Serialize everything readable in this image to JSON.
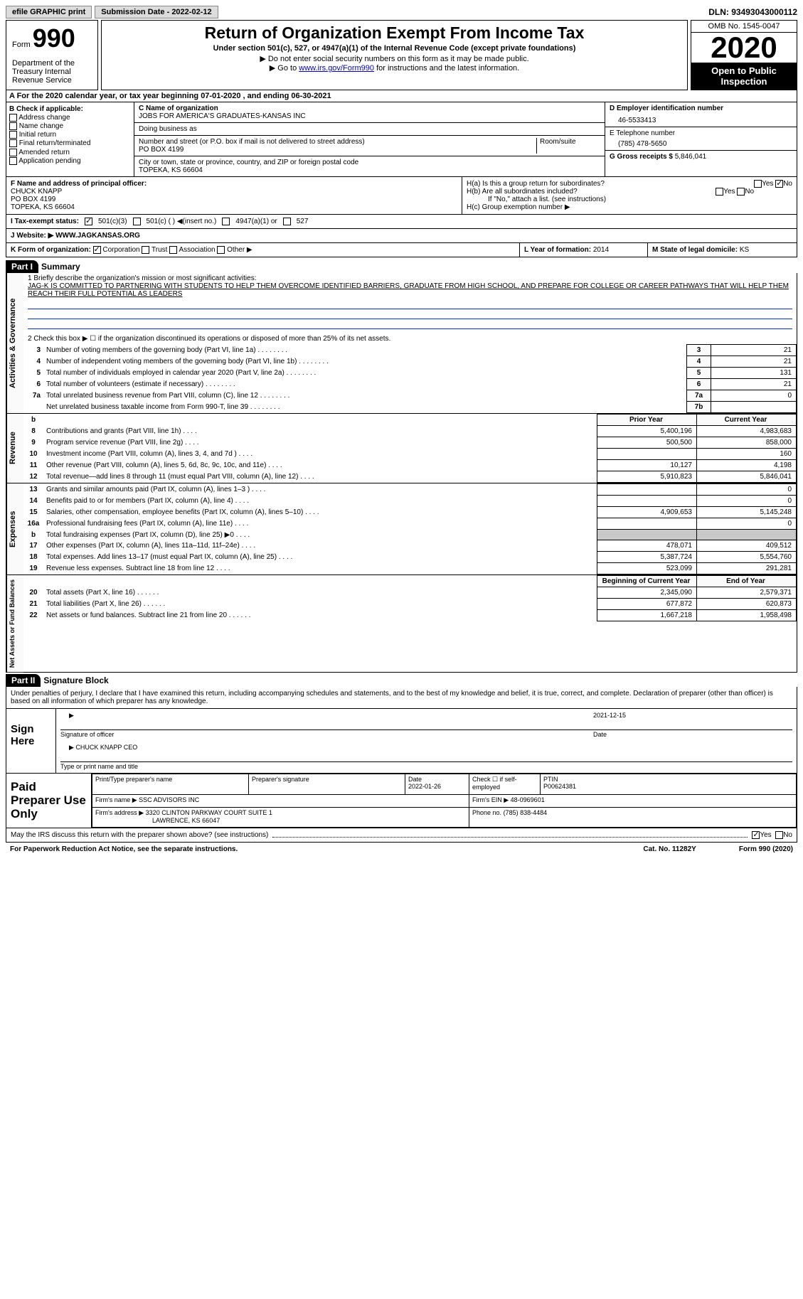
{
  "top": {
    "efile": "efile GRAPHIC print",
    "submission_label": "Submission Date - 2022-02-12",
    "dln": "DLN: 93493043000112"
  },
  "header": {
    "form_word": "Form",
    "form_num": "990",
    "dept": "Department of the Treasury Internal Revenue Service",
    "title": "Return of Organization Exempt From Income Tax",
    "subtitle": "Under section 501(c), 527, or 4947(a)(1) of the Internal Revenue Code (except private foundations)",
    "instr1": "▶ Do not enter social security numbers on this form as it may be made public.",
    "instr2_pre": "▶ Go to ",
    "instr2_link": "www.irs.gov/Form990",
    "instr2_post": " for instructions and the latest information.",
    "omb": "OMB No. 1545-0047",
    "year": "2020",
    "open": "Open to Public Inspection"
  },
  "cal_year": "A For the 2020 calendar year, or tax year beginning 07-01-2020   , and ending 06-30-2021",
  "checks": {
    "header": "B Check if applicable:",
    "c1": "Address change",
    "c2": "Name change",
    "c3": "Initial return",
    "c4": "Final return/terminated",
    "c5": "Amended return",
    "c6": "Application pending"
  },
  "org": {
    "name_label": "C Name of organization",
    "name": "JOBS FOR AMERICA'S GRADUATES-KANSAS INC",
    "dba_label": "Doing business as",
    "dba": "",
    "street_label": "Number and street (or P.O. box if mail is not delivered to street address)",
    "room_label": "Room/suite",
    "street": "PO BOX 4199",
    "city_label": "City or town, state or province, country, and ZIP or foreign postal code",
    "city": "TOPEKA, KS  66604"
  },
  "right": {
    "ein_label": "D Employer identification number",
    "ein": "46-5533413",
    "phone_label": "E Telephone number",
    "phone": "(785) 478-5650",
    "gross_label": "G Gross receipts $",
    "gross": "5,846,041"
  },
  "officer": {
    "label": "F  Name and address of principal officer:",
    "name": "CHUCK KNAPP",
    "street": "PO BOX 4199",
    "city": "TOPEKA, KS  66604"
  },
  "h": {
    "ha_label": "H(a)  Is this a group return for subordinates?",
    "ha_yes": "Yes",
    "ha_no": "No",
    "hb_label": "H(b)  Are all subordinates included?",
    "hb_yes": "Yes",
    "hb_no": "No",
    "hb_note": "If \"No,\" attach a list. (see instructions)",
    "hc_label": "H(c)  Group exemption number ▶"
  },
  "tax_status": {
    "label": "I   Tax-exempt status:",
    "o1": "501(c)(3)",
    "o2": "501(c) (  ) ◀(insert no.)",
    "o3": "4947(a)(1) or",
    "o4": "527"
  },
  "website": {
    "label": "J  Website: ▶  ",
    "val": "WWW.JAGKANSAS.ORG"
  },
  "org_form": {
    "label": "K Form of organization:",
    "o1": "Corporation",
    "o2": "Trust",
    "o3": "Association",
    "o4": "Other ▶",
    "year_label": "L Year of formation: ",
    "year": "2014",
    "state_label": "M State of legal domicile: ",
    "state": "KS"
  },
  "part1": {
    "header": "Part I",
    "title": "Summary"
  },
  "summary": {
    "l1_label": "1   Briefly describe the organization's mission or most significant activities:",
    "l1_text": "JAG-K IS COMMITTED TO PARTNERING WITH STUDENTS TO HELP THEM OVERCOME IDENTIFIED BARRIERS, GRADUATE FROM HIGH SCHOOL, AND PREPARE FOR COLLEGE OR CAREER PATHWAYS THAT WILL HELP THEM REACH THEIR FULL POTENTIAL AS LEADERS",
    "l2": "2   Check this box ▶ ☐  if the organization discontinued its operations or disposed of more than 25% of its net assets.",
    "lines": [
      {
        "n": "3",
        "label": "Number of voting members of the governing body (Part VI, line 1a)",
        "box": "3",
        "val": "21"
      },
      {
        "n": "4",
        "label": "Number of independent voting members of the governing body (Part VI, line 1b)",
        "box": "4",
        "val": "21"
      },
      {
        "n": "5",
        "label": "Total number of individuals employed in calendar year 2020 (Part V, line 2a)",
        "box": "5",
        "val": "131"
      },
      {
        "n": "6",
        "label": "Total number of volunteers (estimate if necessary)",
        "box": "6",
        "val": "21"
      },
      {
        "n": "7a",
        "label": "Total unrelated business revenue from Part VIII, column (C), line 12",
        "box": "7a",
        "val": "0"
      },
      {
        "n": "",
        "label": "Net unrelated business taxable income from Form 990-T, line 39",
        "box": "7b",
        "val": ""
      }
    ]
  },
  "revenue": {
    "side": "Revenue",
    "hdr": {
      "b": "b",
      "py": "Prior Year",
      "cy": "Current Year"
    },
    "rows": [
      {
        "n": "8",
        "label": "Contributions and grants (Part VIII, line 1h)",
        "py": "5,400,196",
        "cy": "4,983,683"
      },
      {
        "n": "9",
        "label": "Program service revenue (Part VIII, line 2g)",
        "py": "500,500",
        "cy": "858,000"
      },
      {
        "n": "10",
        "label": "Investment income (Part VIII, column (A), lines 3, 4, and 7d )",
        "py": "",
        "cy": "160"
      },
      {
        "n": "11",
        "label": "Other revenue (Part VIII, column (A), lines 5, 6d, 8c, 9c, 10c, and 11e)",
        "py": "10,127",
        "cy": "4,198"
      },
      {
        "n": "12",
        "label": "Total revenue—add lines 8 through 11 (must equal Part VIII, column (A), line 12)",
        "py": "5,910,823",
        "cy": "5,846,041"
      }
    ]
  },
  "expenses": {
    "side": "Expenses",
    "rows": [
      {
        "n": "13",
        "label": "Grants and similar amounts paid (Part IX, column (A), lines 1–3 )",
        "py": "",
        "cy": "0"
      },
      {
        "n": "14",
        "label": "Benefits paid to or for members (Part IX, column (A), line 4)",
        "py": "",
        "cy": "0"
      },
      {
        "n": "15",
        "label": "Salaries, other compensation, employee benefits (Part IX, column (A), lines 5–10)",
        "py": "4,909,653",
        "cy": "5,145,248"
      },
      {
        "n": "16a",
        "label": "Professional fundraising fees (Part IX, column (A), line 11e)",
        "py": "",
        "cy": "0"
      },
      {
        "n": "b",
        "label": "Total fundraising expenses (Part IX, column (D), line 25) ▶0",
        "py": "SHADE",
        "cy": "SHADE"
      },
      {
        "n": "17",
        "label": "Other expenses (Part IX, column (A), lines 11a–11d, 11f–24e)",
        "py": "478,071",
        "cy": "409,512"
      },
      {
        "n": "18",
        "label": "Total expenses. Add lines 13–17 (must equal Part IX, column (A), line 25)",
        "py": "5,387,724",
        "cy": "5,554,760"
      },
      {
        "n": "19",
        "label": "Revenue less expenses. Subtract line 18 from line 12",
        "py": "523,099",
        "cy": "291,281"
      }
    ]
  },
  "net": {
    "side": "Net Assets or Fund Balances",
    "hdr": {
      "py": "Beginning of Current Year",
      "cy": "End of Year"
    },
    "rows": [
      {
        "n": "20",
        "label": "Total assets (Part X, line 16)",
        "py": "2,345,090",
        "cy": "2,579,371"
      },
      {
        "n": "21",
        "label": "Total liabilities (Part X, line 26)",
        "py": "677,872",
        "cy": "620,873"
      },
      {
        "n": "22",
        "label": "Net assets or fund balances. Subtract line 21 from line 20",
        "py": "1,667,218",
        "cy": "1,958,498"
      }
    ]
  },
  "part2": {
    "header": "Part II",
    "title": "Signature Block"
  },
  "perjury": "Under penalties of perjury, I declare that I have examined this return, including accompanying schedules and statements, and to the best of my knowledge and belief, it is true, correct, and complete. Declaration of preparer (other than officer) is based on all information of which preparer has any knowledge.",
  "sign": {
    "label": "Sign Here",
    "sig_label": "Signature of officer",
    "date_label": "Date",
    "date": "2021-12-15",
    "name": "CHUCK KNAPP CEO",
    "name_label": "Type or print name and title"
  },
  "preparer": {
    "label": "Paid Preparer Use Only",
    "h_name": "Print/Type preparer's name",
    "h_sig": "Preparer's signature",
    "h_date": "Date",
    "date": "2022-01-26",
    "h_check": "Check ☐ if self-employed",
    "h_ptin": "PTIN",
    "ptin": "P00624381",
    "firm_name_label": "Firm's name    ▶",
    "firm_name": "SSC ADVISORS INC",
    "firm_ein_label": "Firm's EIN ▶",
    "firm_ein": "48-0969601",
    "firm_addr_label": "Firm's address ▶",
    "firm_addr": "3320 CLINTON PARKWAY COURT SUITE 1",
    "firm_city": "LAWRENCE, KS  66047",
    "firm_phone_label": "Phone no.",
    "firm_phone": "(785) 838-4484"
  },
  "discuss": {
    "label": "May the IRS discuss this return with the preparer shown above? (see instructions)",
    "yes": "Yes",
    "no": "No"
  },
  "footer": {
    "left": "For Paperwork Reduction Act Notice, see the separate instructions.",
    "mid": "Cat. No. 11282Y",
    "right": "Form 990 (2020)"
  },
  "side_gov": "Activities & Governance"
}
